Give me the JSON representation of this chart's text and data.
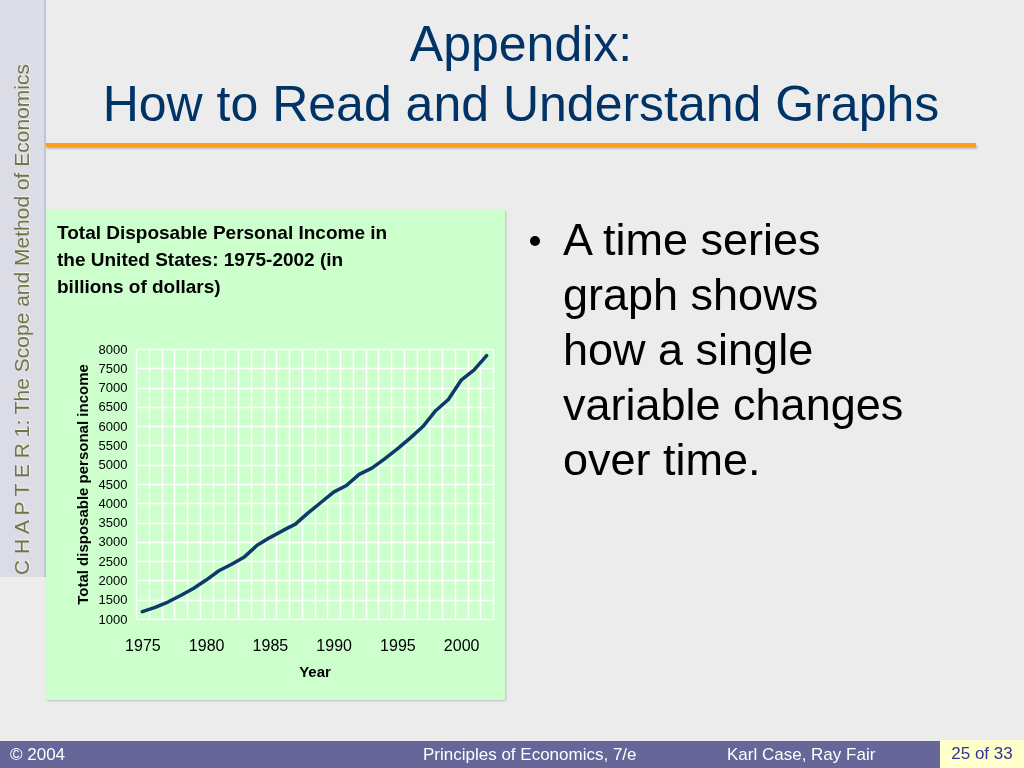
{
  "chart_data": {
    "type": "line",
    "title": "Total Disposable Personal Income in the United States: 1975-2002 (in billions of dollars)",
    "xlabel": "Year",
    "ylabel": "Total disposable personal income",
    "categories": [
      "1975",
      null,
      null,
      null,
      null,
      "1980",
      null,
      null,
      null,
      null,
      "1985",
      null,
      null,
      null,
      null,
      "1990",
      null,
      null,
      null,
      null,
      "1995",
      null,
      null,
      null,
      null,
      "2000",
      null,
      null
    ],
    "series": [
      {
        "color": "#0c3a6b",
        "values": [
          1190,
          1300,
          1440,
          1610,
          1790,
          2010,
          2250,
          2420,
          2610,
          2910,
          3110,
          3290,
          3460,
          3750,
          4020,
          4290,
          4460,
          4750,
          4910,
          5150,
          5410,
          5690,
          5990,
          6400,
          6690,
          7190,
          7450,
          7830
        ]
      }
    ],
    "ylim": [
      1000,
      8000
    ],
    "yticks": [
      1000,
      1500,
      2000,
      2500,
      3000,
      3500,
      4000,
      4500,
      5000,
      5500,
      6000,
      6500,
      7000,
      7500,
      8000
    ],
    "grid": true,
    "annotations": [
      "Appendix:",
      "How to Read and Understand Graphs",
      "C H A P T E R 1: The Scope and Method of Economics",
      "A time series graph shows how a single variable changes over time.",
      "© 2004",
      "Principles of Economics, 7/e",
      "Karl Case, Ray Fair",
      "25 of 33"
    ]
  }
}
